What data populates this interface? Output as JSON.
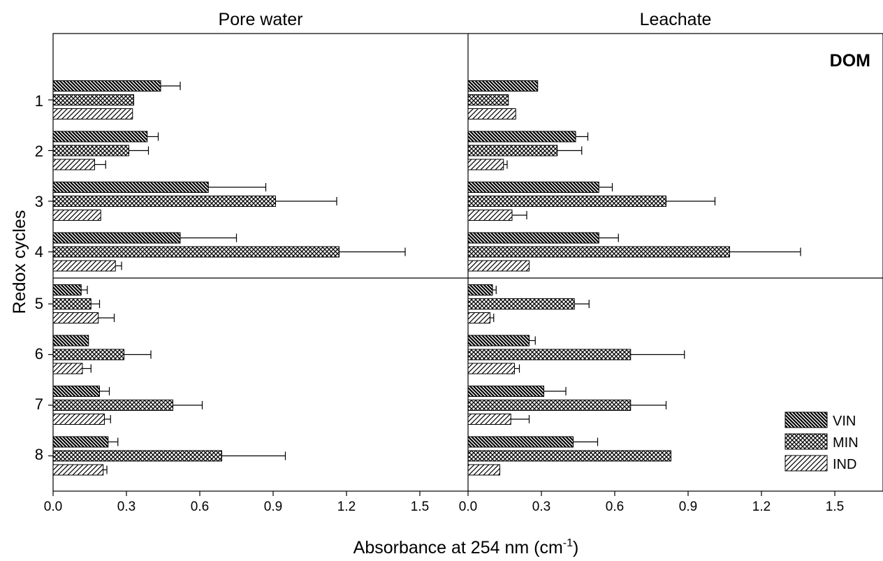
{
  "chart_data": {
    "type": "bar",
    "orientation": "horizontal",
    "ylabel": "Redox cycles",
    "xlabel": "Absorbance at 254 nm (cm",
    "xlabel_sup": "-1",
    "xlabel_end": ")",
    "annotation": "DOM",
    "categories": [
      "1",
      "2",
      "3",
      "4",
      "5",
      "6",
      "7",
      "8"
    ],
    "xlim": [
      0,
      1.7
    ],
    "xticks": [
      "0.0",
      "0.3",
      "0.6",
      "0.9",
      "1.2",
      "1.5"
    ],
    "xtick_values": [
      0,
      0.3,
      0.6,
      0.9,
      1.2,
      1.5
    ],
    "legend": {
      "position": "bottom-right",
      "entries": [
        "VIN",
        "MIN",
        "IND"
      ]
    },
    "panels": [
      {
        "title": "Pore water",
        "series": [
          {
            "name": "VIN",
            "values": [
              0.44,
              0.385,
              0.635,
              0.52,
              0.115,
              0.145,
              0.19,
              0.225
            ],
            "errors": [
              0.08,
              0.045,
              0.235,
              0.23,
              0.025,
              0.0,
              0.04,
              0.04
            ]
          },
          {
            "name": "MIN",
            "values": [
              0.33,
              0.31,
              0.91,
              1.17,
              0.155,
              0.29,
              0.49,
              0.69
            ],
            "errors": [
              0.0,
              0.08,
              0.25,
              0.27,
              0.035,
              0.11,
              0.12,
              0.26
            ]
          },
          {
            "name": "IND",
            "values": [
              0.325,
              0.17,
              0.195,
              0.255,
              0.185,
              0.12,
              0.21,
              0.205
            ],
            "errors": [
              0.0,
              0.045,
              0.0,
              0.025,
              0.065,
              0.035,
              0.025,
              0.015
            ]
          }
        ]
      },
      {
        "title": "Leachate",
        "series": [
          {
            "name": "VIN",
            "values": [
              0.285,
              0.44,
              0.535,
              0.535,
              0.1,
              0.25,
              0.31,
              0.43
            ],
            "errors": [
              0.0,
              0.05,
              0.055,
              0.08,
              0.015,
              0.025,
              0.09,
              0.1
            ]
          },
          {
            "name": "MIN",
            "values": [
              0.165,
              0.365,
              0.81,
              1.07,
              0.435,
              0.665,
              0.665,
              0.83
            ],
            "errors": [
              0.0,
              0.1,
              0.2,
              0.29,
              0.06,
              0.22,
              0.145,
              0.0
            ]
          },
          {
            "name": "IND",
            "values": [
              0.195,
              0.145,
              0.18,
              0.25,
              0.09,
              0.19,
              0.175,
              0.13
            ],
            "errors": [
              0.0,
              0.015,
              0.06,
              0.0,
              0.015,
              0.02,
              0.075,
              0.0
            ]
          }
        ]
      }
    ]
  }
}
